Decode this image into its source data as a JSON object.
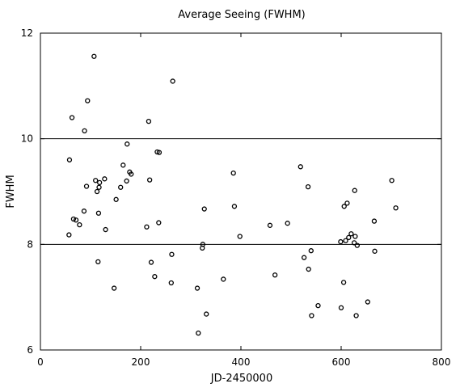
{
  "chart_data": {
    "type": "scatter",
    "title": "Average Seeing (FWHM)",
    "xlabel": "JD-2450000",
    "ylabel": "FWHM",
    "xlim": [
      0,
      800
    ],
    "ylim": [
      6,
      12
    ],
    "xticks": [
      0,
      200,
      400,
      600,
      800
    ],
    "yticks": [
      6,
      8,
      10,
      12
    ],
    "xtick_labels": [
      "0",
      "200",
      "400",
      "600",
      "800"
    ],
    "ytick_labels": [
      "6",
      "8",
      "10",
      "12"
    ],
    "horizontal_gridlines": [
      8,
      10
    ],
    "marker": "open-circle",
    "marker_color": "#000000",
    "x": [
      57,
      58,
      63,
      66,
      71,
      78,
      87,
      88,
      92,
      94,
      107,
      110,
      113,
      116,
      115,
      117,
      118,
      128,
      130,
      147,
      151,
      160,
      165,
      172,
      173,
      178,
      181,
      212,
      216,
      218,
      221,
      228,
      233,
      236,
      237,
      261,
      262,
      264,
      313,
      315,
      323,
      324,
      327,
      331,
      365,
      385,
      387,
      398,
      458,
      468,
      493,
      519,
      526,
      534,
      535,
      540,
      541,
      554,
      599,
      600,
      605,
      606,
      609,
      612,
      615,
      620,
      626,
      627,
      628,
      630,
      632,
      653,
      666,
      667,
      701,
      709
    ],
    "y": [
      8.18,
      9.6,
      10.4,
      8.48,
      8.46,
      8.37,
      8.63,
      10.15,
      9.1,
      10.72,
      11.56,
      9.21,
      9.0,
      8.59,
      7.67,
      9.08,
      9.17,
      9.24,
      8.28,
      7.17,
      8.85,
      9.08,
      9.5,
      9.2,
      9.9,
      9.37,
      9.33,
      8.33,
      10.33,
      9.22,
      7.66,
      7.39,
      9.75,
      8.41,
      9.74,
      7.27,
      7.81,
      11.09,
      7.17,
      6.32,
      7.93,
      8.0,
      8.67,
      6.68,
      7.34,
      9.35,
      8.72,
      8.15,
      8.36,
      7.42,
      8.4,
      9.47,
      7.75,
      9.09,
      7.53,
      7.88,
      6.65,
      6.84,
      8.05,
      6.8,
      7.28,
      8.72,
      8.07,
      8.78,
      8.13,
      8.2,
      8.03,
      9.02,
      8.15,
      6.65,
      7.98,
      6.91,
      8.44,
      7.87,
      9.21,
      8.69
    ]
  }
}
